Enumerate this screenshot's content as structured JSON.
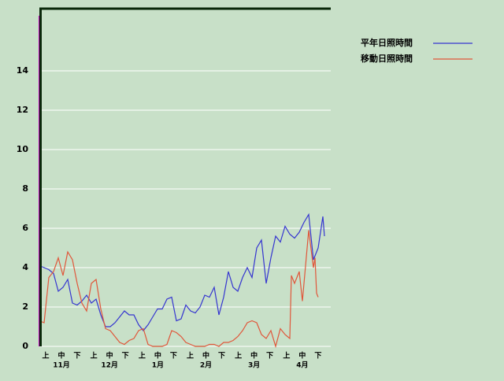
{
  "chart_data": {
    "type": "line",
    "xlim": [
      0,
      185
    ],
    "ylim": [
      0,
      17.2
    ],
    "yticks": [
      0,
      2,
      4,
      6,
      8,
      10,
      12,
      14
    ],
    "grid": true,
    "period_labels": [
      "上",
      "中",
      "下",
      "上",
      "中",
      "下",
      "上",
      "中",
      "下",
      "上",
      "中",
      "下",
      "上",
      "中",
      "下",
      "上",
      "中",
      "下"
    ],
    "month_labels": [
      "11月",
      "12月",
      "1月",
      "2月",
      "3月",
      "4月"
    ],
    "legend": "top-right",
    "series": [
      {
        "name": "平年日照時間",
        "color": "#3535d0",
        "x": [
          0,
          3,
          6,
          9,
          12,
          15,
          18,
          21,
          24,
          27,
          30,
          33,
          36,
          39,
          42,
          45,
          48,
          51,
          54,
          57,
          60,
          63,
          66,
          69,
          72,
          75,
          78,
          81,
          84,
          87,
          90,
          93,
          96,
          99,
          102,
          105,
          108,
          111,
          114,
          117,
          120,
          123,
          126,
          129,
          132,
          135,
          138,
          141,
          144,
          147,
          150,
          153,
          156,
          159,
          162,
          165,
          168,
          171,
          174,
          177,
          180,
          181
        ],
        "values": [
          4.1,
          4.0,
          3.9,
          3.7,
          2.8,
          3.0,
          3.4,
          2.2,
          2.1,
          2.3,
          2.6,
          2.2,
          2.4,
          1.6,
          1.0,
          1.0,
          1.2,
          1.5,
          1.8,
          1.6,
          1.6,
          1.1,
          0.8,
          1.1,
          1.5,
          1.9,
          1.9,
          2.4,
          2.5,
          1.3,
          1.4,
          2.1,
          1.8,
          1.7,
          2.0,
          2.6,
          2.5,
          3.0,
          1.6,
          2.5,
          3.8,
          3.0,
          2.8,
          3.5,
          4.0,
          3.5,
          5.0,
          5.4,
          3.2,
          4.5,
          5.6,
          5.3,
          6.1,
          5.7,
          5.5,
          5.8,
          6.3,
          6.7,
          4.4,
          5.0,
          6.6,
          5.6
        ]
      },
      {
        "name": "移動日照時間",
        "color": "#e0563a",
        "x": [
          0,
          3,
          6,
          9,
          12,
          15,
          18,
          21,
          24,
          27,
          30,
          33,
          36,
          39,
          42,
          45,
          48,
          51,
          54,
          57,
          60,
          63,
          66,
          69,
          72,
          75,
          78,
          81,
          84,
          87,
          90,
          93,
          96,
          99,
          102,
          105,
          108,
          111,
          114,
          117,
          120,
          123,
          126,
          129,
          132,
          135,
          138,
          141,
          144,
          147,
          150,
          153,
          156,
          159,
          160,
          162,
          165,
          167,
          170,
          171,
          174,
          175,
          176,
          177
        ],
        "values": [
          1.3,
          1.2,
          3.5,
          3.8,
          4.5,
          3.6,
          4.8,
          4.4,
          3.2,
          2.2,
          1.8,
          3.2,
          3.4,
          1.9,
          0.9,
          0.8,
          0.5,
          0.2,
          0.1,
          0.3,
          0.4,
          0.8,
          0.9,
          0.1,
          0,
          0,
          0,
          0.1,
          0.8,
          0.7,
          0.5,
          0.2,
          0.1,
          0,
          0,
          0,
          0.1,
          0.1,
          0,
          0.2,
          0.2,
          0.3,
          0.5,
          0.8,
          1.2,
          1.3,
          1.2,
          0.6,
          0.4,
          0.8,
          0.0,
          0.9,
          0.6,
          0.4,
          3.6,
          3.2,
          3.8,
          2.3,
          5.0,
          5.9,
          4.0,
          4.5,
          2.7,
          2.5
        ]
      }
    ]
  }
}
